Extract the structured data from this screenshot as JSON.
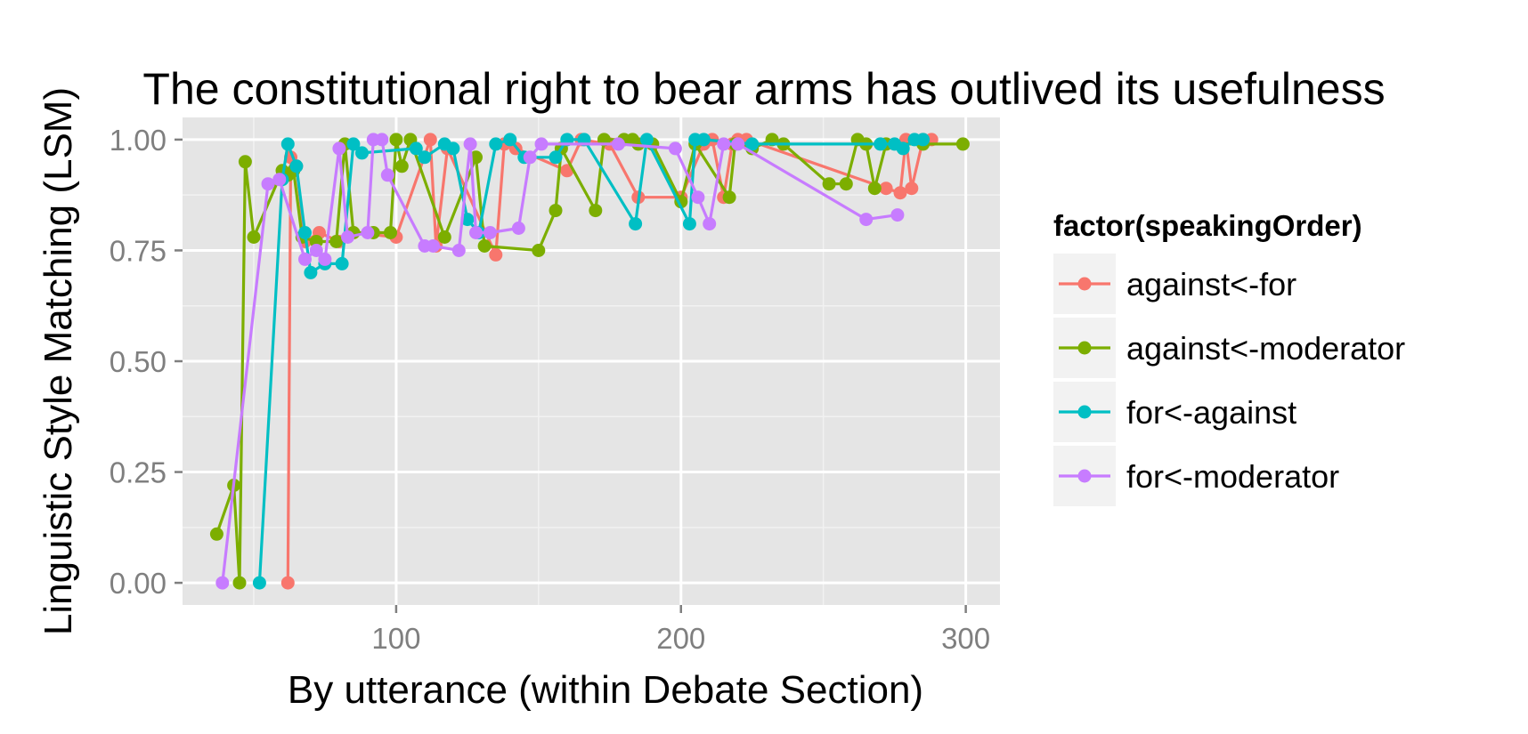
{
  "chart_data": {
    "type": "line",
    "title": "The constitutional right to bear arms has outlived its usefulness",
    "xlabel": "By utterance (within Debate Section)",
    "ylabel": "Linguistic Style Matching (LSM)",
    "xlim": [
      25,
      312
    ],
    "ylim": [
      -0.05,
      1.05
    ],
    "x_ticks": [
      100,
      200,
      300
    ],
    "x_tick_labels": [
      "100",
      "200",
      "300"
    ],
    "y_ticks": [
      0,
      0.25,
      0.5,
      0.75,
      1
    ],
    "y_tick_labels": [
      "0.00",
      "0.25",
      "0.50",
      "0.75",
      "1.00"
    ],
    "grid": true,
    "background": "#e5e5e5",
    "legend": {
      "title": "factor(speakingOrder)",
      "position": "right"
    },
    "series": [
      {
        "name": "against<-for",
        "color": "#f8766d",
        "points": [
          [
            62,
            0.0
          ],
          [
            63,
            0.96
          ],
          [
            65,
            0.94
          ],
          [
            68,
            0.77
          ],
          [
            73,
            0.79
          ],
          [
            80,
            0.77
          ],
          [
            85,
            0.79
          ],
          [
            100,
            0.78
          ],
          [
            112,
            1.0
          ],
          [
            114,
            0.76
          ],
          [
            118,
            0.98
          ],
          [
            135,
            0.74
          ],
          [
            138,
            0.99
          ],
          [
            142,
            0.98
          ],
          [
            160,
            0.93
          ],
          [
            165,
            1.0
          ],
          [
            175,
            0.99
          ],
          [
            185,
            0.87
          ],
          [
            200,
            0.87
          ],
          [
            208,
            0.99
          ],
          [
            211,
            1.0
          ],
          [
            215,
            0.87
          ],
          [
            218,
            0.99
          ],
          [
            220,
            1.0
          ],
          [
            223,
            1.0
          ],
          [
            272,
            0.89
          ],
          [
            277,
            0.88
          ],
          [
            279,
            1.0
          ],
          [
            281,
            0.89
          ],
          [
            285,
            1.0
          ],
          [
            288,
            1.0
          ]
        ]
      },
      {
        "name": "against<-moderator",
        "color": "#7cae00",
        "points": [
          [
            37,
            0.11
          ],
          [
            43,
            0.22
          ],
          [
            45,
            0.0
          ],
          [
            47,
            0.95
          ],
          [
            50,
            0.78
          ],
          [
            60,
            0.93
          ],
          [
            62,
            0.92
          ],
          [
            64,
            0.93
          ],
          [
            67,
            0.78
          ],
          [
            72,
            0.77
          ],
          [
            79,
            0.77
          ],
          [
            82,
            0.99
          ],
          [
            85,
            0.79
          ],
          [
            92,
            0.79
          ],
          [
            98,
            0.79
          ],
          [
            100,
            1.0
          ],
          [
            102,
            0.94
          ],
          [
            105,
            1.0
          ],
          [
            117,
            0.78
          ],
          [
            128,
            0.96
          ],
          [
            131,
            0.76
          ],
          [
            150,
            0.75
          ],
          [
            156,
            0.84
          ],
          [
            158,
            0.98
          ],
          [
            170,
            0.84
          ],
          [
            173,
            1.0
          ],
          [
            180,
            1.0
          ],
          [
            183,
            1.0
          ],
          [
            185,
            0.99
          ],
          [
            190,
            0.99
          ],
          [
            200,
            0.86
          ],
          [
            205,
            0.99
          ],
          [
            217,
            0.87
          ],
          [
            219,
            0.99
          ],
          [
            225,
            0.98
          ],
          [
            232,
            1.0
          ],
          [
            236,
            0.99
          ],
          [
            252,
            0.9
          ],
          [
            258,
            0.9
          ],
          [
            262,
            1.0
          ],
          [
            265,
            0.99
          ],
          [
            268,
            0.89
          ],
          [
            272,
            0.99
          ],
          [
            285,
            0.99
          ],
          [
            299,
            0.99
          ]
        ]
      },
      {
        "name": "for<-against",
        "color": "#00bfc4",
        "points": [
          [
            52,
            0.0
          ],
          [
            60,
            0.91
          ],
          [
            62,
            0.99
          ],
          [
            65,
            0.94
          ],
          [
            68,
            0.79
          ],
          [
            70,
            0.7
          ],
          [
            75,
            0.72
          ],
          [
            81,
            0.72
          ],
          [
            85,
            0.99
          ],
          [
            88,
            0.97
          ],
          [
            107,
            0.98
          ],
          [
            110,
            0.96
          ],
          [
            117,
            0.99
          ],
          [
            120,
            0.98
          ],
          [
            125,
            0.82
          ],
          [
            129,
            0.79
          ],
          [
            135,
            0.99
          ],
          [
            140,
            1.0
          ],
          [
            145,
            0.96
          ],
          [
            156,
            0.96
          ],
          [
            160,
            1.0
          ],
          [
            166,
            1.0
          ],
          [
            184,
            0.81
          ],
          [
            188,
            1.0
          ],
          [
            203,
            0.81
          ],
          [
            205,
            1.0
          ],
          [
            208,
            1.0
          ],
          [
            225,
            0.99
          ],
          [
            270,
            0.99
          ],
          [
            275,
            0.99
          ],
          [
            278,
            0.98
          ],
          [
            282,
            1.0
          ],
          [
            285,
            1.0
          ]
        ]
      },
      {
        "name": "for<-moderator",
        "color": "#c77cff",
        "points": [
          [
            39,
            0.0
          ],
          [
            55,
            0.9
          ],
          [
            59,
            0.91
          ],
          [
            68,
            0.73
          ],
          [
            72,
            0.75
          ],
          [
            75,
            0.73
          ],
          [
            80,
            0.98
          ],
          [
            83,
            0.78
          ],
          [
            90,
            0.79
          ],
          [
            92,
            1.0
          ],
          [
            95,
            1.0
          ],
          [
            97,
            0.92
          ],
          [
            110,
            0.76
          ],
          [
            113,
            0.76
          ],
          [
            122,
            0.75
          ],
          [
            126,
            0.99
          ],
          [
            128,
            0.79
          ],
          [
            133,
            0.79
          ],
          [
            143,
            0.8
          ],
          [
            147,
            0.96
          ],
          [
            151,
            0.99
          ],
          [
            178,
            0.99
          ],
          [
            198,
            0.98
          ],
          [
            206,
            0.87
          ],
          [
            210,
            0.81
          ],
          [
            215,
            0.99
          ],
          [
            220,
            0.99
          ],
          [
            265,
            0.82
          ],
          [
            276,
            0.83
          ]
        ]
      }
    ]
  }
}
